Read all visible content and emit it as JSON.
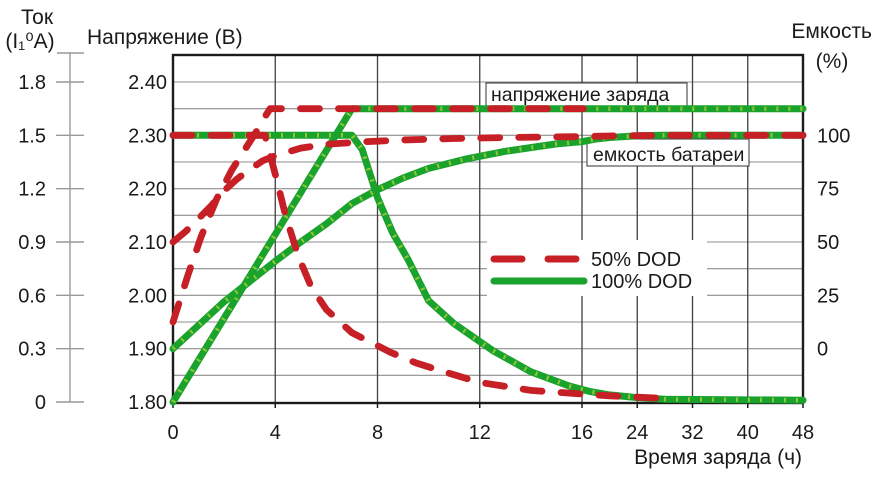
{
  "titles": {
    "current_axis_line1": "Ток",
    "current_axis_line2": "(I₁⁰А)",
    "voltage_axis": "Напряжение (В)",
    "capacity_axis_line1": "Емкость",
    "capacity_axis_line2": "(%)",
    "x_axis": "Время заряда (ч)"
  },
  "annotations": {
    "voltage_line_label": "напряжение заряда",
    "capacity_line_label": "емкость батареи"
  },
  "legend": {
    "items": [
      {
        "label": "50% DOD",
        "color": "#c62026",
        "dashed": true
      },
      {
        "label": "100% DOD",
        "color": "#1aa32c",
        "dashed": false
      }
    ]
  },
  "colors": {
    "red": "#c62026",
    "green": "#1aa32c",
    "green_joint": "#a4ce39",
    "grid_h": "#8e8e8e",
    "grid_v": "#3f3f3f",
    "frame": "#1b1b1b",
    "outer_axis": "#999999"
  },
  "chart_data": {
    "type": "line",
    "title": "",
    "x_axis": {
      "label": "Время заряда (ч)",
      "ticks": [
        0,
        4,
        8,
        12,
        16,
        24,
        32,
        40,
        48
      ],
      "range": [
        0,
        48
      ],
      "scale_note": "linear 0-16 h, compressed 4x for 16-48 h"
    },
    "y_axes": {
      "voltage": {
        "label": "Напряжение (В)",
        "ticks": [
          2.4,
          2.3,
          2.2,
          2.1,
          2.0,
          1.9,
          1.8
        ],
        "range": [
          1.8,
          2.45
        ],
        "gridline_step": 0.05
      },
      "current": {
        "label": "Ток (I₁⁰А)",
        "ticks": [
          1.8,
          1.5,
          1.2,
          0.9,
          0.6,
          0.3,
          0
        ],
        "range": [
          0,
          1.8
        ]
      },
      "capacity": {
        "label": "Емкость (%)",
        "ticks": [
          100,
          75,
          50,
          25,
          0
        ],
        "range": [
          0,
          100
        ]
      }
    },
    "grid": true,
    "legend_position": "inside-right-middle",
    "series": [
      {
        "name": "Напряжение заряда 100% DOD",
        "dod": "100% DOD",
        "measure": "voltage",
        "axis": "voltage",
        "color": "#1aa32c",
        "dashed": false,
        "points": [
          [
            0,
            1.8
          ],
          [
            7,
            2.35
          ],
          [
            48,
            2.35
          ]
        ]
      },
      {
        "name": "Ток заряда 100% DOD",
        "dod": "100% DOD",
        "measure": "current",
        "axis": "current",
        "color": "#1aa32c",
        "dashed": false,
        "points": [
          [
            0,
            1.5
          ],
          [
            7,
            1.5
          ],
          [
            7.4,
            1.42
          ],
          [
            8,
            1.15
          ],
          [
            8.6,
            0.95
          ],
          [
            9.2,
            0.8
          ],
          [
            10,
            0.57
          ],
          [
            11,
            0.44
          ],
          [
            12.5,
            0.29
          ],
          [
            14,
            0.17
          ],
          [
            15.5,
            0.09
          ],
          [
            17,
            0.06
          ],
          [
            20,
            0.04
          ],
          [
            24,
            0.025
          ],
          [
            28,
            0.015
          ],
          [
            48,
            0.01
          ]
        ]
      },
      {
        "name": "Емкость батареи 100% DOD",
        "dod": "100% DOD",
        "measure": "capacity",
        "axis": "capacity",
        "color": "#1aa32c",
        "dashed": false,
        "points": [
          [
            0,
            0
          ],
          [
            1,
            11
          ],
          [
            2,
            22
          ],
          [
            3,
            31.5
          ],
          [
            4,
            41
          ],
          [
            5,
            50
          ],
          [
            6,
            58.5
          ],
          [
            7,
            68
          ],
          [
            8,
            74.5
          ],
          [
            9,
            80
          ],
          [
            10,
            84.5
          ],
          [
            11.5,
            89
          ],
          [
            13,
            92.5
          ],
          [
            15,
            96
          ],
          [
            16,
            97
          ],
          [
            18,
            98.3
          ],
          [
            20,
            99
          ],
          [
            24,
            99.8
          ],
          [
            28,
            100
          ],
          [
            48,
            100
          ]
        ]
      },
      {
        "name": "Напряжение заряда 50% DOD",
        "dod": "50% DOD",
        "measure": "voltage",
        "axis": "voltage",
        "color": "#c62026",
        "dashed": true,
        "points": [
          [
            0,
            1.95
          ],
          [
            0.6,
            2.04
          ],
          [
            1.1,
            2.11
          ],
          [
            1.7,
            2.18
          ],
          [
            2.3,
            2.235
          ],
          [
            2.9,
            2.28
          ],
          [
            3.3,
            2.31
          ],
          [
            3.6,
            2.335
          ],
          [
            3.8,
            2.35
          ],
          [
            16.2,
            2.35
          ]
        ]
      },
      {
        "name": "Ток заряда 50% DOD",
        "dod": "50% DOD",
        "measure": "current",
        "axis": "current",
        "color": "#c62026",
        "dashed": true,
        "points": [
          [
            0,
            1.5
          ],
          [
            3.6,
            1.5
          ],
          [
            4.0,
            1.28
          ],
          [
            4.4,
            1.05
          ],
          [
            4.9,
            0.82
          ],
          [
            5.4,
            0.65
          ],
          [
            6,
            0.52
          ],
          [
            7,
            0.39
          ],
          [
            8.5,
            0.28
          ],
          [
            9.5,
            0.22
          ],
          [
            10.6,
            0.17
          ],
          [
            12,
            0.11
          ],
          [
            14,
            0.065
          ],
          [
            16,
            0.045
          ],
          [
            20,
            0.035
          ],
          [
            24,
            0.027
          ],
          [
            28,
            0.02
          ]
        ]
      },
      {
        "name": "Емкость батареи 50% DOD",
        "dod": "50% DOD",
        "measure": "capacity",
        "axis": "capacity",
        "color": "#c62026",
        "dashed": true,
        "points": [
          [
            0,
            50
          ],
          [
            0.5,
            55
          ],
          [
            1,
            61
          ],
          [
            1.5,
            67
          ],
          [
            2,
            74
          ],
          [
            2.5,
            79.5
          ],
          [
            3,
            84
          ],
          [
            3.5,
            88
          ],
          [
            4,
            90.5
          ],
          [
            5,
            94
          ],
          [
            6,
            95.8
          ],
          [
            7.5,
            97
          ],
          [
            9,
            97.8
          ],
          [
            11,
            98.5
          ],
          [
            13,
            99
          ],
          [
            16,
            99.4
          ],
          [
            20,
            99.7
          ],
          [
            28,
            100
          ],
          [
            48,
            100
          ]
        ]
      }
    ],
    "annotations": [
      {
        "text": "напряжение заряда",
        "points_to": "voltage plateau 2.35 V"
      },
      {
        "text": "емкость батареи",
        "points_to": "capacity curve near 100%"
      }
    ]
  }
}
